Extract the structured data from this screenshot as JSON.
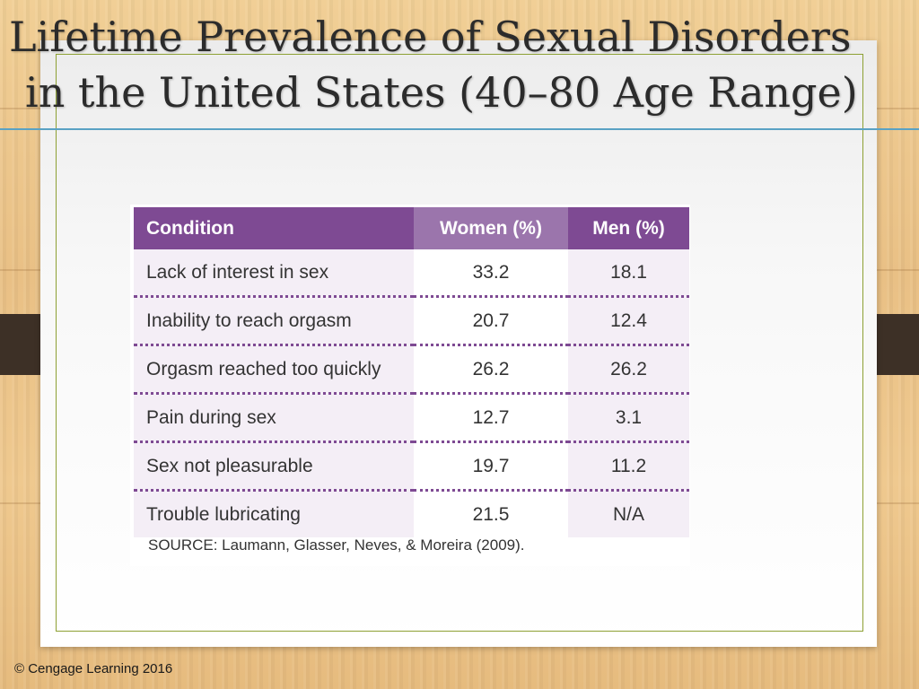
{
  "slide": {
    "title_line1": "Lifetime Prevalence of Sexual Disorders",
    "title_line2": "in the United States (40–80 Age Range)",
    "copyright": "© Cengage Learning 2016"
  },
  "table": {
    "headers": {
      "condition": "Condition",
      "women": "Women (%)",
      "men": "Men (%)"
    },
    "rows": [
      {
        "condition": "Lack of interest in sex",
        "women": "33.2",
        "men": "18.1"
      },
      {
        "condition": "Inability to reach orgasm",
        "women": "20.7",
        "men": "12.4"
      },
      {
        "condition": "Orgasm reached too quickly",
        "women": "26.2",
        "men": "26.2"
      },
      {
        "condition": "Pain during sex",
        "women": "12.7",
        "men": "3.1"
      },
      {
        "condition": "Sex not pleasurable",
        "women": "19.7",
        "men": "11.2"
      },
      {
        "condition": "Trouble lubricating",
        "women": "21.5",
        "men": "N/A"
      }
    ],
    "source": "SOURCE: Laumann, Glasser, Neves, & Moreira (2009)."
  },
  "colors": {
    "header_purple": "#7e4a93",
    "header_light_purple": "#9b75ac",
    "accent_rule": "#5aa2c4",
    "card_border": "#8da033"
  }
}
